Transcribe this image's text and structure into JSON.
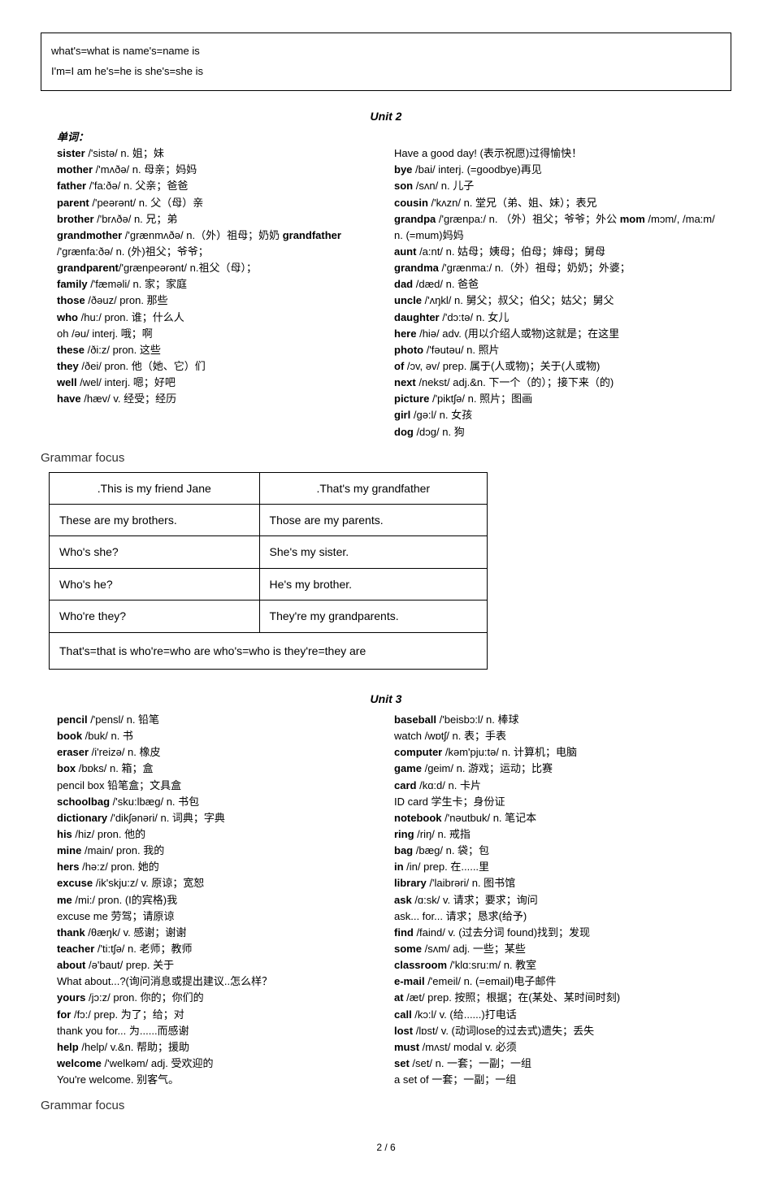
{
  "topBox": {
    "line1": "what's=what is   name's=name is",
    "line2": "I'm=I am   he's=he is  she's=she is"
  },
  "unit2": {
    "title": "Unit 2",
    "vocabHeader": "单词：",
    "left": [
      {
        "b": "sister",
        "t": " /'sistə/ n. 姐；妹"
      },
      {
        "b": "mother",
        "t": " /'mʌðə/ n. 母亲；妈妈"
      },
      {
        "b": "father",
        "t": " /'fa:ðə/ n. 父亲；爸爸"
      },
      {
        "b": "parent",
        "t": " /'peərənt/ n. 父（母）亲"
      },
      {
        "b": "brother",
        "t": " /'brʌðə/ n. 兄；弟"
      },
      {
        "b": "grandmother",
        "t": " /'grænmʌðə/ n.（外）祖母；奶奶 ",
        "b2": "grandfather",
        "t2": " /'grænfa:ðə/ n. (外)祖父；爷爷；"
      },
      {
        "b": "grandparent",
        "t": "/'grænpeərənt/ n.祖父（母）；"
      },
      {
        "b": "family",
        "t": " /'fæməli/ n. 家；家庭"
      },
      {
        "b": "those",
        "t": " /ðəuz/ pron. 那些"
      },
      {
        "b": "who",
        "t": " /hu:/ pron. 谁；什么人"
      },
      {
        "b": "",
        "t": "oh /əu/ interj. 哦；啊"
      },
      {
        "b": "these",
        "t": " /ði:z/ pron. 这些"
      },
      {
        "b": "they",
        "t": " /ðei/ pron. 他（她、它）们"
      },
      {
        "b": "well",
        "t": " /wel/ interj. 嗯；好吧"
      },
      {
        "b": "have",
        "t": " /hæv/ v. 经受；经历"
      }
    ],
    "right": [
      {
        "b": "",
        "t": "Have a good day! (表示祝愿)过得愉快！"
      },
      {
        "b": "bye",
        "t": " /bai/ interj. (=goodbye)再见"
      },
      {
        "b": "son",
        "t": " /sʌn/ n. 儿子"
      },
      {
        "b": "cousin",
        "t": " /'kʌzn/ n. 堂兄（弟、姐、妹）；表兄"
      },
      {
        "b": "grandpa",
        "t": " /'grænpa:/ n. （外）祖父；爷爷；外公 ",
        "b2": "mom",
        "t2": " /mɔm/, /ma:m/ n. (=mum)妈妈"
      },
      {
        "b": "aunt",
        "t": " /a:nt/ n. 姑母；姨母；伯母；婶母；舅母"
      },
      {
        "b": "grandma",
        "t": " /'grænma:/ n.（外）祖母；奶奶；外婆；"
      },
      {
        "b": "dad",
        "t": " /dæd/ n. 爸爸"
      },
      {
        "b": "uncle",
        "t": " /'ʌŋkl/ n. 舅父；叔父；伯父；姑父；舅父"
      },
      {
        "b": "daughter",
        "t": " /'dɔ:tə/ n. 女儿"
      },
      {
        "b": "here",
        "t": " /hiə/ adv. (用以介绍人或物)这就是；在这里"
      },
      {
        "b": "photo",
        "t": " /'fəutəu/ n. 照片"
      },
      {
        "b": "of",
        "t": " /ɔv, əv/ prep. 属于(人或物)；关于(人或物)"
      },
      {
        "b": "next",
        "t": " /nekst/ adj.&n. 下一个（的）；接下来（的)"
      },
      {
        "b": "picture",
        "t": " /'piktʃə/ n. 照片；图画"
      },
      {
        "b": "girl",
        "t": " /gə:l/ n. 女孩"
      },
      {
        "b": "dog",
        "t": " /dɔg/ n. 狗"
      }
    ]
  },
  "grammar2": {
    "heading": "Grammar focus",
    "rows": [
      [
        ".This is my friend Jane",
        ".That's my grandfather"
      ],
      [
        "These are my brothers.",
        "Those are my parents."
      ],
      [
        "Who's she?",
        "She's my sister."
      ],
      [
        "Who's he?",
        "He's my brother."
      ],
      [
        "Who're they?",
        "They're my grandparents."
      ]
    ],
    "footer": "That's=that   is        who're=who   are       who's=who   is     they're=they are"
  },
  "unit3": {
    "title": "Unit 3",
    "left": [
      {
        "b": "pencil",
        "t": " /'pensl/ n. 铅笔"
      },
      {
        "b": "book",
        "t": " /buk/ n. 书"
      },
      {
        "b": "eraser",
        "t": " /i'reizə/ n. 橡皮"
      },
      {
        "b": "box",
        "t": " /bɒks/ n. 箱；盒"
      },
      {
        "b": "",
        "t": "pencil box 铅笔盒；文具盒"
      },
      {
        "b": "schoolbag",
        "t": " /'sku:lbæg/ n. 书包"
      },
      {
        "b": "dictionary",
        "t": " /'dikʃənəri/ n. 词典；字典"
      },
      {
        "b": "his",
        "t": " /hiz/ pron. 他的"
      },
      {
        "b": "mine",
        "t": " /main/ pron. 我的"
      },
      {
        "b": "hers",
        "t": " /hə:z/ pron. 她的"
      },
      {
        "b": "excuse",
        "t": " /ik'skju:z/ v. 原谅；宽恕"
      },
      {
        "b": "me",
        "t": " /mi:/ pron. (I的宾格)我"
      },
      {
        "b": "",
        "t": "excuse me 劳驾；请原谅"
      },
      {
        "b": "thank",
        "t": " /θæŋk/ v. 感谢；谢谢"
      },
      {
        "b": "teacher",
        "t": " /'ti:tʃə/ n. 老师；教师"
      },
      {
        "b": "about",
        "t": " /ə'baut/ prep. 关于"
      },
      {
        "b": "",
        "t": "What about...?(询问消息或提出建议..怎么样？"
      },
      {
        "b": "yours",
        "t": " /jɔ:z/ pron. 你的；你们的"
      },
      {
        "b": "for",
        "t": " /fɔ:/ prep. 为了；给；对"
      },
      {
        "b": "",
        "t": "thank you for... 为......而感谢"
      },
      {
        "b": "help",
        "t": " /help/ v.&n. 帮助；援助"
      },
      {
        "b": "welcome",
        "t": " /'welkəm/ adj. 受欢迎的"
      },
      {
        "b": "",
        "t": "You're welcome. 别客气。"
      }
    ],
    "right": [
      {
        "b": "baseball",
        "t": " /'beisbɔ:l/ n. 棒球"
      },
      {
        "b": "",
        "t": "watch /wɒtʃ/ n. 表；手表"
      },
      {
        "b": "computer",
        "t": " /kəm'pju:tə/ n. 计算机；电脑"
      },
      {
        "b": "game",
        "t": " /geim/ n. 游戏；运动；比赛"
      },
      {
        "b": "card",
        "t": " /kɑ:d/ n. 卡片"
      },
      {
        "b": "",
        "t": "ID card 学生卡；身份证"
      },
      {
        "b": "notebook",
        "t": " /'nəutbuk/ n. 笔记本"
      },
      {
        "b": "ring",
        "t": " /riŋ/ n. 戒指"
      },
      {
        "b": "bag",
        "t": " /bæg/ n. 袋；包"
      },
      {
        "b": "in",
        "t": " /in/ prep. 在......里"
      },
      {
        "b": "library",
        "t": " /'laibrəri/ n. 图书馆"
      },
      {
        "b": "ask",
        "t": " /ɑ:sk/ v. 请求；要求；询问"
      },
      {
        "b": "",
        "t": "ask... for... 请求；恳求(给予)"
      },
      {
        "b": "find",
        "t": " /faind/ v. (过去分词 found)找到；发现"
      },
      {
        "b": "some",
        "t": " /sʌm/ adj. 一些；某些"
      },
      {
        "b": "classroom",
        "t": " /'klɑ:sru:m/ n. 教室"
      },
      {
        "b": "e-mail",
        "t": " /'emeil/ n. (=email)电子邮件"
      },
      {
        "b": "at",
        "t": " /æt/ prep. 按照；根据；在(某处、某时间时刻)"
      },
      {
        "b": "call",
        "t": " /kɔ:l/ v. (给......)打电话"
      },
      {
        "b": "lost",
        "t": " /lɒst/ v. (动词lose的过去式)遗失；丢失"
      },
      {
        "b": "must",
        "t": " /mʌst/ modal v. 必须"
      },
      {
        "b": "set",
        "t": " /set/ n. 一套；一副；一组"
      },
      {
        "b": "",
        "t": "a set of 一套；一副；一组"
      }
    ]
  },
  "grammar3": {
    "heading": "Grammar focus"
  },
  "pageNum": "2 / 6"
}
